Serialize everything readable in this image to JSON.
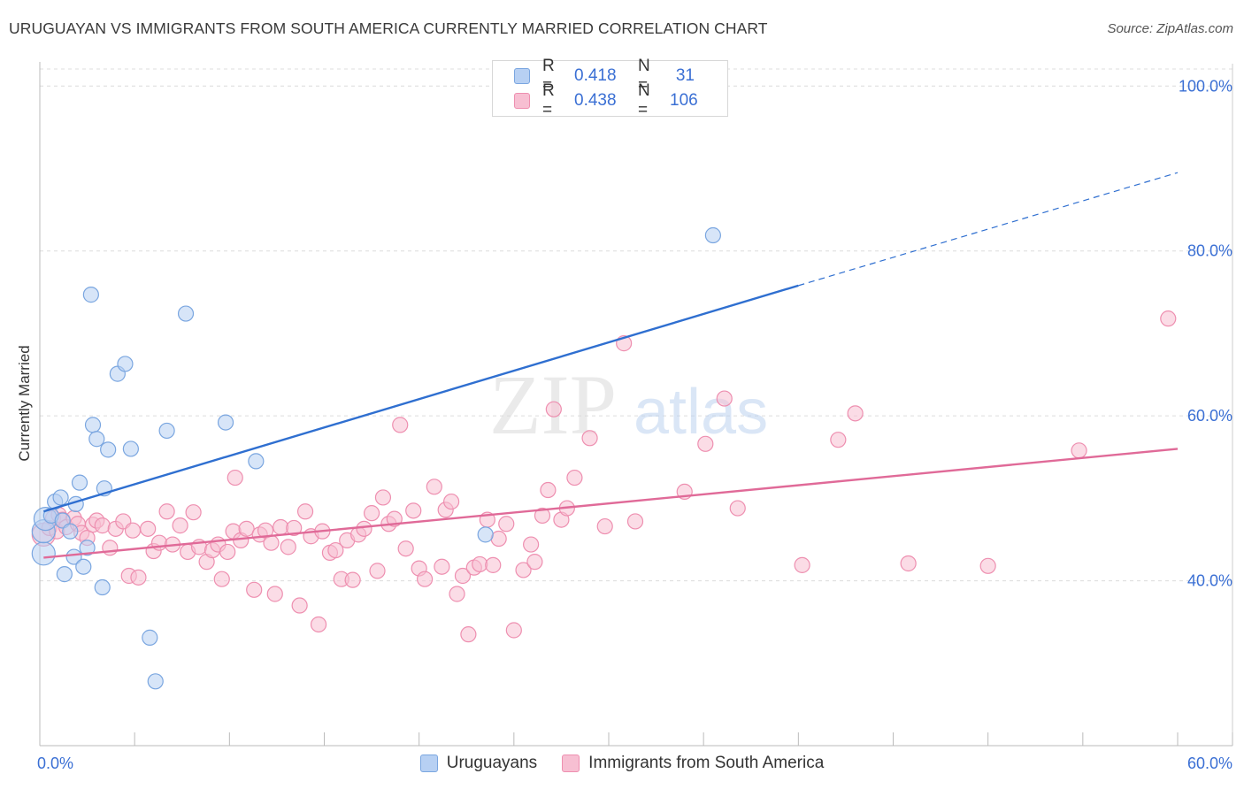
{
  "header": {
    "title": "URUGUAYAN VS IMMIGRANTS FROM SOUTH AMERICA CURRENTLY MARRIED CORRELATION CHART",
    "source": "Source: ZipAtlas.com"
  },
  "watermark": {
    "zip": "ZIP",
    "atlas": "atlas"
  },
  "legend_top": {
    "rows": [
      {
        "r_label": "R =",
        "r_value": "0.418",
        "n_label": "N =",
        "n_value": "31"
      },
      {
        "r_label": "R =",
        "r_value": "0.438",
        "n_label": "N =",
        "n_value": "106"
      }
    ]
  },
  "colors": {
    "blue_fill": "#b7d0f3",
    "blue_stroke": "#7aa6e0",
    "blue_line": "#2f6fd0",
    "pink_fill": "#f7bfd2",
    "pink_stroke": "#ee8fb0",
    "pink_line": "#e06a98",
    "grid": "#dcdcdc",
    "tick_label": "#3a6fd4"
  },
  "chart_data": {
    "type": "scatter",
    "xlabel": "",
    "ylabel": "Currently Married",
    "xlim": [
      0,
      60
    ],
    "ylim": [
      20,
      104
    ],
    "x_tick_labels": [
      {
        "value": 0,
        "label": "0.0%"
      },
      {
        "value": 60,
        "label": "60.0%"
      }
    ],
    "y_tick_labels": [
      {
        "value": 40,
        "label": "40.0%"
      },
      {
        "value": 60,
        "label": "60.0%"
      },
      {
        "value": 80,
        "label": "80.0%"
      },
      {
        "value": 100,
        "label": "100.0%"
      }
    ],
    "grid": true,
    "legend_position": "bottom",
    "series": [
      {
        "name": "Uruguayans",
        "color": "blue",
        "trend": {
          "x0": 0.2,
          "y0": 48.4,
          "x1": 40.0,
          "y1": 75.8,
          "dash_to_x": 60,
          "dash_to_y": 89.5
        },
        "points": [
          [
            0.2,
            43.3
          ],
          [
            0.2,
            46.0
          ],
          [
            0.3,
            47.5
          ],
          [
            0.6,
            47.9
          ],
          [
            0.8,
            49.6
          ],
          [
            1.1,
            50.1
          ],
          [
            1.2,
            47.3
          ],
          [
            1.3,
            40.8
          ],
          [
            1.6,
            46.0
          ],
          [
            1.8,
            42.9
          ],
          [
            1.9,
            49.3
          ],
          [
            2.1,
            51.9
          ],
          [
            2.3,
            41.7
          ],
          [
            2.5,
            44.0
          ],
          [
            2.7,
            74.7
          ],
          [
            2.8,
            58.9
          ],
          [
            3.0,
            57.2
          ],
          [
            3.3,
            39.2
          ],
          [
            3.4,
            51.2
          ],
          [
            3.6,
            55.9
          ],
          [
            4.1,
            65.1
          ],
          [
            4.5,
            66.3
          ],
          [
            4.8,
            56.0
          ],
          [
            5.8,
            33.1
          ],
          [
            6.1,
            27.8
          ],
          [
            6.7,
            58.2
          ],
          [
            7.7,
            72.4
          ],
          [
            9.8,
            59.2
          ],
          [
            11.4,
            54.5
          ],
          [
            23.5,
            45.6
          ],
          [
            35.5,
            81.9
          ]
        ]
      },
      {
        "name": "Immigrants from South America",
        "color": "pink",
        "trend": {
          "x0": 0.2,
          "y0": 42.8,
          "x1": 60.0,
          "y1": 56.0
        },
        "points": [
          [
            0.2,
            45.6
          ],
          [
            0.5,
            46.4
          ],
          [
            0.7,
            47.6
          ],
          [
            0.9,
            46.0
          ],
          [
            1.0,
            48.0
          ],
          [
            1.2,
            47.4
          ],
          [
            1.4,
            46.5
          ],
          [
            1.8,
            47.6
          ],
          [
            2.0,
            46.9
          ],
          [
            2.2,
            45.8
          ],
          [
            2.5,
            45.2
          ],
          [
            2.8,
            46.8
          ],
          [
            3.0,
            47.3
          ],
          [
            3.3,
            46.7
          ],
          [
            3.7,
            44.0
          ],
          [
            4.0,
            46.3
          ],
          [
            4.4,
            47.2
          ],
          [
            4.7,
            40.6
          ],
          [
            4.9,
            46.1
          ],
          [
            5.2,
            40.4
          ],
          [
            5.7,
            46.3
          ],
          [
            6.0,
            43.6
          ],
          [
            6.3,
            44.6
          ],
          [
            6.7,
            48.4
          ],
          [
            7.0,
            44.4
          ],
          [
            7.4,
            46.7
          ],
          [
            7.8,
            43.5
          ],
          [
            8.1,
            48.3
          ],
          [
            8.4,
            44.1
          ],
          [
            8.8,
            42.3
          ],
          [
            9.1,
            43.7
          ],
          [
            9.4,
            44.4
          ],
          [
            9.6,
            40.2
          ],
          [
            9.9,
            43.5
          ],
          [
            10.2,
            46.0
          ],
          [
            10.3,
            52.5
          ],
          [
            10.6,
            44.9
          ],
          [
            10.9,
            46.3
          ],
          [
            11.3,
            38.9
          ],
          [
            11.6,
            45.6
          ],
          [
            11.9,
            46.1
          ],
          [
            12.2,
            44.6
          ],
          [
            12.4,
            38.4
          ],
          [
            12.7,
            46.5
          ],
          [
            13.1,
            44.1
          ],
          [
            13.4,
            46.4
          ],
          [
            13.7,
            37.0
          ],
          [
            14.0,
            48.4
          ],
          [
            14.3,
            45.4
          ],
          [
            14.7,
            34.7
          ],
          [
            14.9,
            46.0
          ],
          [
            15.3,
            43.4
          ],
          [
            15.6,
            43.7
          ],
          [
            15.9,
            40.2
          ],
          [
            16.2,
            44.9
          ],
          [
            16.5,
            40.1
          ],
          [
            16.8,
            45.6
          ],
          [
            17.1,
            46.3
          ],
          [
            17.5,
            48.2
          ],
          [
            17.8,
            41.2
          ],
          [
            18.1,
            50.1
          ],
          [
            18.4,
            46.9
          ],
          [
            18.7,
            47.5
          ],
          [
            19.0,
            58.9
          ],
          [
            19.3,
            43.9
          ],
          [
            19.7,
            48.5
          ],
          [
            20.0,
            41.5
          ],
          [
            20.3,
            40.2
          ],
          [
            20.8,
            51.4
          ],
          [
            21.2,
            41.7
          ],
          [
            21.4,
            48.6
          ],
          [
            21.7,
            49.6
          ],
          [
            22.0,
            38.4
          ],
          [
            22.3,
            40.6
          ],
          [
            22.6,
            33.5
          ],
          [
            22.9,
            41.6
          ],
          [
            23.2,
            42.0
          ],
          [
            23.6,
            47.4
          ],
          [
            23.9,
            41.9
          ],
          [
            24.2,
            45.1
          ],
          [
            24.6,
            46.9
          ],
          [
            25.0,
            34.0
          ],
          [
            25.5,
            41.3
          ],
          [
            25.9,
            44.4
          ],
          [
            26.1,
            42.3
          ],
          [
            26.5,
            47.9
          ],
          [
            26.8,
            51.0
          ],
          [
            27.1,
            60.8
          ],
          [
            27.5,
            47.4
          ],
          [
            27.8,
            48.8
          ],
          [
            28.2,
            52.5
          ],
          [
            29.0,
            57.3
          ],
          [
            29.8,
            46.6
          ],
          [
            30.8,
            68.8
          ],
          [
            31.4,
            47.2
          ],
          [
            34.0,
            50.8
          ],
          [
            35.1,
            56.6
          ],
          [
            36.1,
            62.1
          ],
          [
            36.8,
            48.8
          ],
          [
            40.2,
            41.9
          ],
          [
            42.1,
            57.1
          ],
          [
            43.0,
            60.3
          ],
          [
            45.8,
            42.1
          ],
          [
            50.0,
            41.8
          ],
          [
            54.8,
            55.8
          ],
          [
            59.5,
            71.8
          ]
        ]
      }
    ]
  }
}
